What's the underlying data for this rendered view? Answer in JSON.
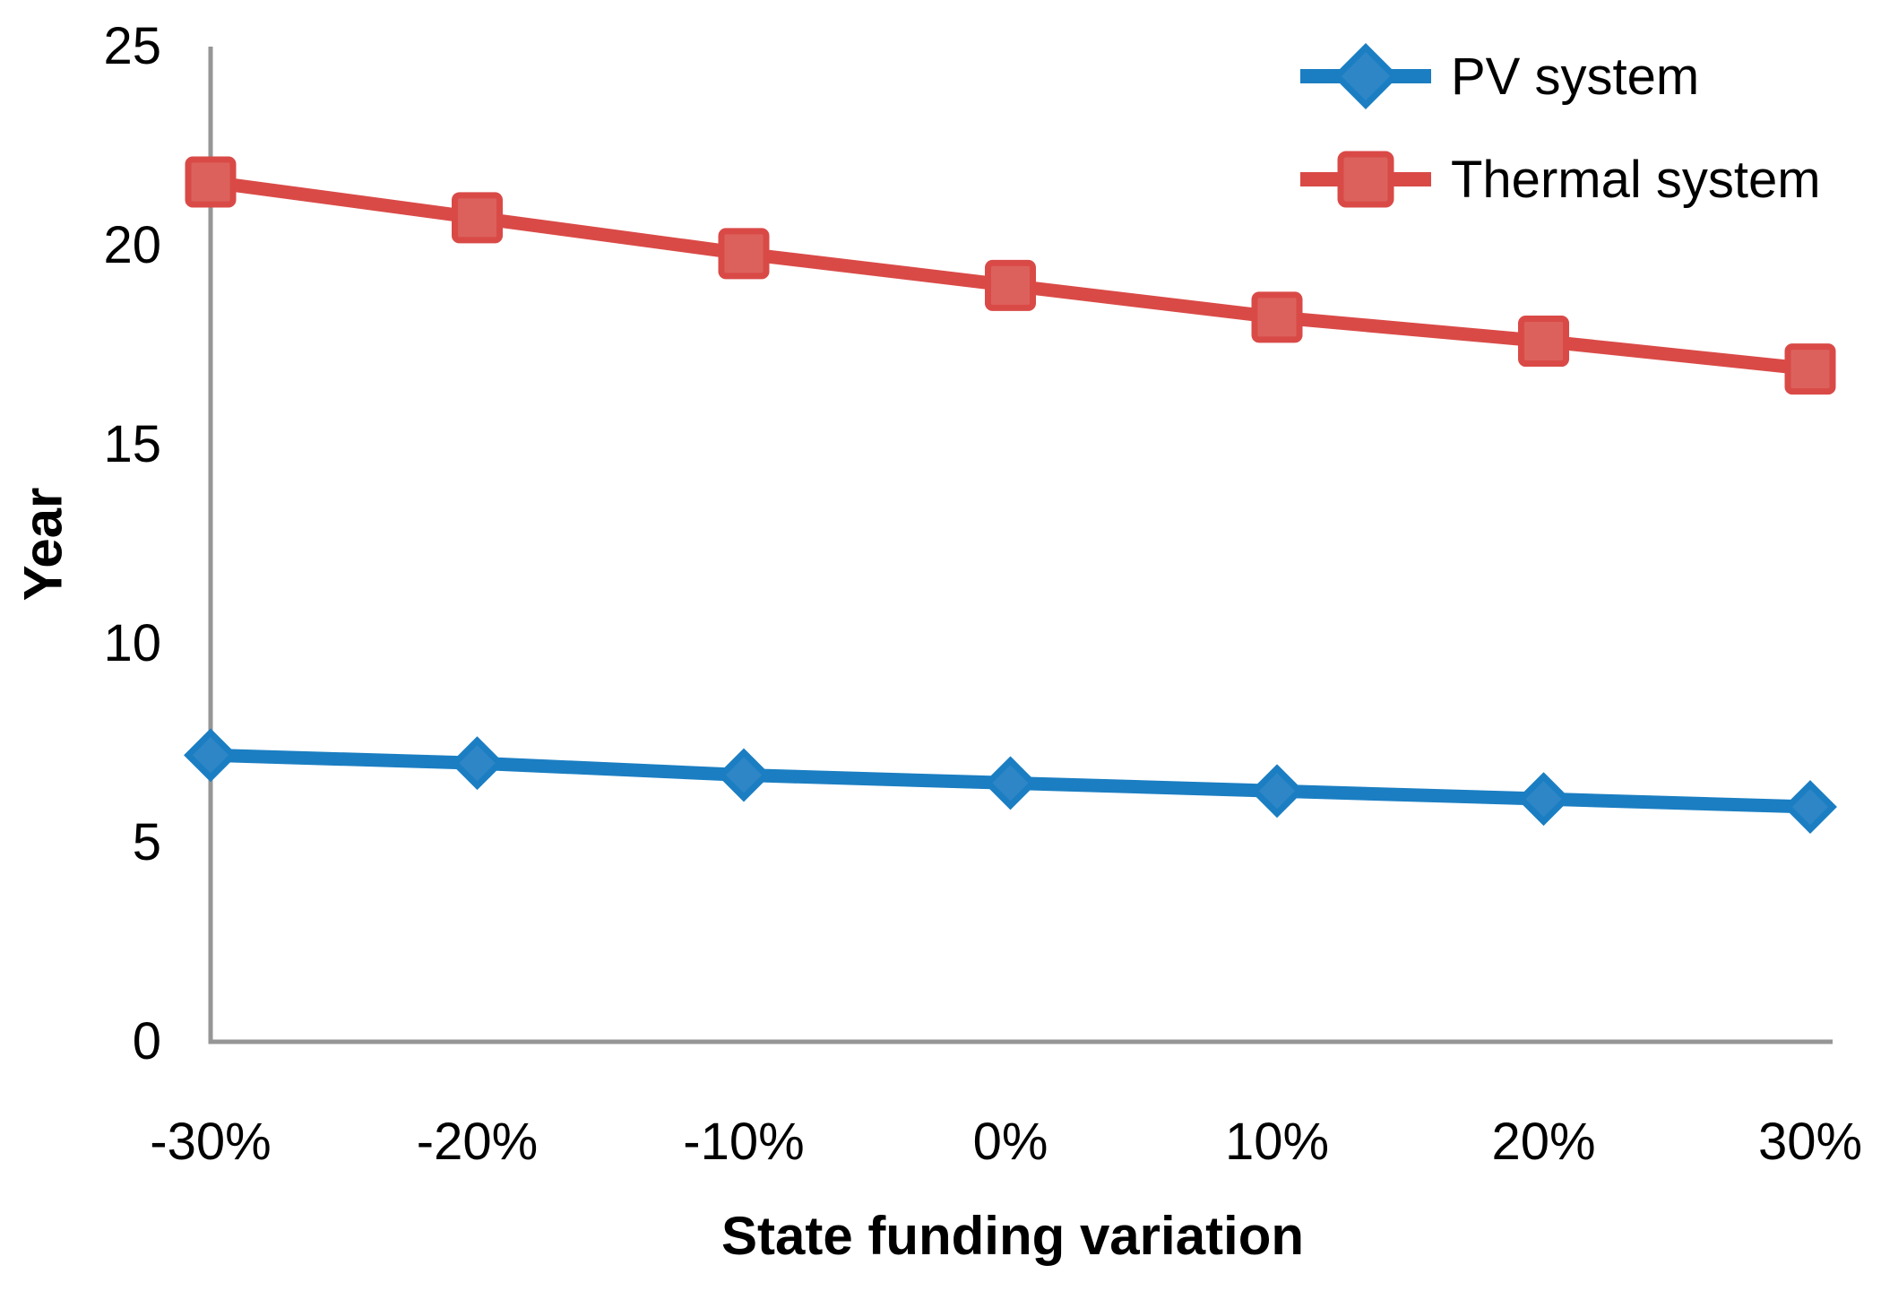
{
  "chart_data": {
    "type": "line",
    "title": "",
    "xlabel": "State funding variation",
    "ylabel": "Year",
    "categories": [
      "-30%",
      "-20%",
      "-10%",
      "0%",
      "10%",
      "20%",
      "30%"
    ],
    "series": [
      {
        "name": "PV system",
        "marker": "diamond",
        "color": "#1B7EC2",
        "marker_fill": "#2E86C6",
        "values": [
          7.2,
          7.0,
          6.7,
          6.5,
          6.3,
          6.1,
          5.9
        ]
      },
      {
        "name": "Thermal system",
        "marker": "square",
        "color": "#D94A47",
        "marker_fill": "#DC615D",
        "values": [
          21.6,
          20.7,
          19.8,
          19.0,
          18.2,
          17.6,
          16.9
        ]
      }
    ],
    "ylim": [
      0,
      25
    ],
    "yticks": [
      0,
      5,
      10,
      15,
      20,
      25
    ],
    "grid": false,
    "legend_position": "top-right",
    "axis_color": "#969696",
    "text_color": "#000000"
  }
}
